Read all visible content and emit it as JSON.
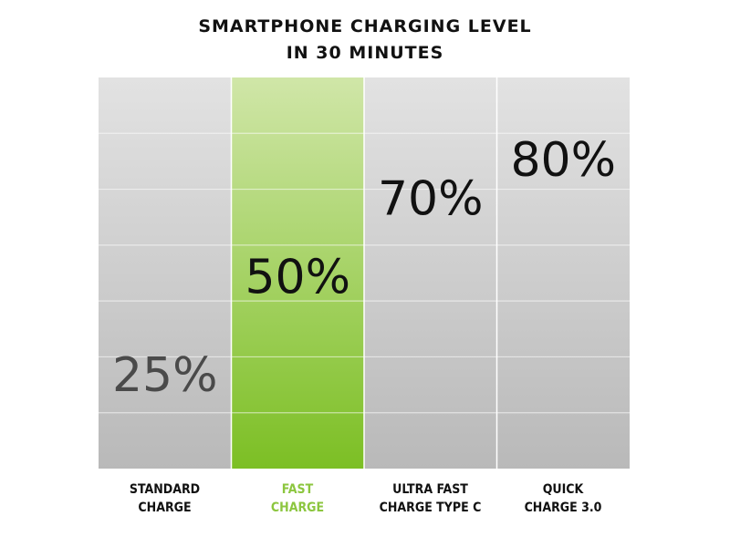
{
  "title_lines": [
    "SMARTPHONE CHARGING LEVEL",
    "IN 30 MINUTES"
  ],
  "colors": {
    "grid_top": "#e2e2e2",
    "grid_bottom": "#b9b9b9",
    "highlight_top": "#d0e6a8",
    "highlight_bottom": "#7cbf24",
    "highlight_label": "#8cc63f",
    "value_text_dark": "#111111",
    "value_text_muted": "#4a4a4a"
  },
  "chart_data": {
    "type": "bar",
    "title": "SMARTPHONE CHARGING LEVEL IN 30 MINUTES",
    "categories": [
      [
        "STANDARD",
        "CHARGE"
      ],
      [
        "FAST",
        "CHARGE"
      ],
      [
        "ULTRA FAST",
        "CHARGE TYPE C"
      ],
      [
        "QUICK",
        "CHARGE 3.0"
      ]
    ],
    "values": [
      25,
      50,
      70,
      80
    ],
    "value_labels": [
      "25%",
      "50%",
      "70%",
      "80%"
    ],
    "highlight_index": 1,
    "ylim": [
      0,
      100
    ]
  }
}
